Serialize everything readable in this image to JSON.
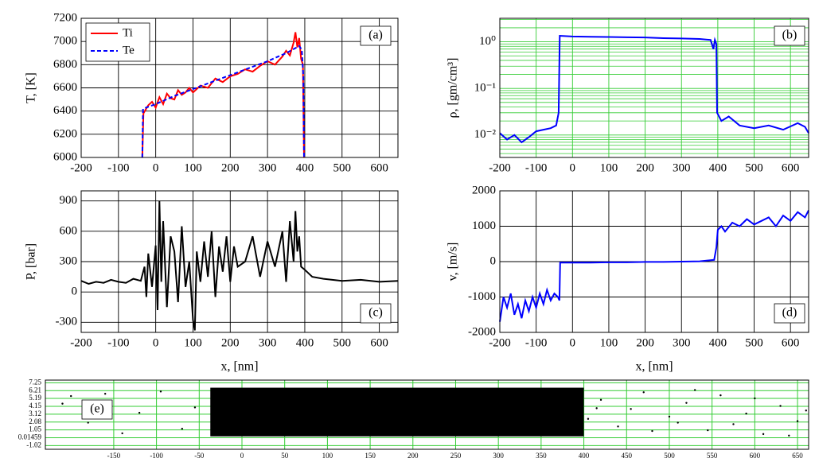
{
  "chart_data": [
    {
      "type": "line",
      "annotation": "(a)",
      "ylabel": "T, [K]",
      "xlim": [
        -200,
        650
      ],
      "xticks": [
        -200,
        -100,
        0,
        100,
        200,
        300,
        400,
        500,
        600
      ],
      "ylim": [
        6000,
        7200
      ],
      "yticks": [
        6000,
        6200,
        6400,
        6600,
        6800,
        7000,
        7200
      ],
      "grid": true,
      "grid_color": "#000000",
      "legend": "upper left",
      "series": [
        {
          "name": "Ti",
          "color": "#ff0000",
          "line_style": "solid",
          "x": [
            -36,
            -33,
            -20,
            -10,
            0,
            10,
            20,
            30,
            40,
            50,
            60,
            70,
            80,
            90,
            100,
            120,
            140,
            160,
            180,
            200,
            220,
            240,
            260,
            280,
            300,
            320,
            340,
            350,
            360,
            370,
            375,
            380,
            385,
            390,
            395,
            398
          ],
          "values": [
            6000,
            6380,
            6450,
            6480,
            6430,
            6520,
            6460,
            6550,
            6510,
            6500,
            6580,
            6540,
            6560,
            6600,
            6560,
            6620,
            6600,
            6680,
            6650,
            6700,
            6720,
            6760,
            6740,
            6790,
            6830,
            6800,
            6870,
            6920,
            6880,
            6990,
            7080,
            6950,
            7030,
            6850,
            6800,
            6000
          ]
        },
        {
          "name": "Te",
          "color": "#0000ff",
          "line_style": "dashed",
          "x": [
            -36,
            -34,
            0,
            50,
            100,
            150,
            200,
            250,
            300,
            350,
            385,
            392,
            396,
            398
          ],
          "values": [
            6000,
            6420,
            6460,
            6530,
            6590,
            6650,
            6710,
            6770,
            6830,
            6900,
            6960,
            6930,
            6700,
            6000
          ]
        }
      ]
    },
    {
      "type": "line",
      "annotation": "(b)",
      "ylabel": "ρ, [gm/cm³]",
      "log_scale": true,
      "xlim": [
        -200,
        650
      ],
      "xticks": [
        -200,
        -100,
        0,
        100,
        200,
        300,
        400,
        500,
        600
      ],
      "ylim": [
        0.0033,
        3.2
      ],
      "yticks": [
        {
          "value": 0.01,
          "label": "10⁻²"
        },
        {
          "value": 0.1,
          "label": "10⁻¹"
        },
        {
          "value": 1,
          "label": "10⁰"
        }
      ],
      "grid": true,
      "minor_grid": true,
      "grid_color": "#33cc33",
      "series": [
        {
          "color": "#0000ff",
          "line_style": "solid",
          "x": [
            -200,
            -180,
            -160,
            -140,
            -120,
            -100,
            -80,
            -60,
            -45,
            -38,
            -35,
            0,
            50,
            100,
            150,
            200,
            250,
            300,
            350,
            380,
            388,
            392,
            396,
            398,
            410,
            430,
            460,
            500,
            540,
            580,
            620,
            640,
            650
          ],
          "values": [
            0.011,
            0.008,
            0.01,
            0.007,
            0.009,
            0.012,
            0.013,
            0.014,
            0.016,
            0.03,
            1.35,
            1.3,
            1.28,
            1.27,
            1.25,
            1.24,
            1.2,
            1.18,
            1.15,
            1.1,
            0.7,
            1.1,
            0.9,
            0.03,
            0.02,
            0.025,
            0.016,
            0.014,
            0.016,
            0.013,
            0.018,
            0.015,
            0.011
          ]
        }
      ]
    },
    {
      "type": "line",
      "annotation": "(c)",
      "ylabel": "P, [bar]",
      "xlabel": "x, [nm]",
      "xlim": [
        -200,
        650
      ],
      "xticks": [
        -200,
        -100,
        0,
        100,
        200,
        300,
        400,
        500,
        600
      ],
      "ylim": [
        -400,
        1000
      ],
      "yticks": [
        -300,
        0,
        300,
        600,
        900
      ],
      "grid": true,
      "grid_color": "#000000",
      "series": [
        {
          "color": "#000000",
          "line_style": "solid",
          "x": [
            -200,
            -180,
            -160,
            -140,
            -120,
            -100,
            -80,
            -60,
            -40,
            -30,
            -25,
            -20,
            -10,
            0,
            5,
            10,
            15,
            20,
            30,
            40,
            50,
            60,
            70,
            80,
            90,
            100,
            105,
            110,
            120,
            130,
            140,
            150,
            160,
            170,
            180,
            190,
            200,
            210,
            220,
            240,
            260,
            280,
            300,
            320,
            340,
            350,
            360,
            370,
            375,
            380,
            385,
            390,
            400,
            420,
            450,
            500,
            550,
            600,
            650
          ],
          "values": [
            110,
            80,
            100,
            90,
            120,
            100,
            90,
            130,
            110,
            250,
            -50,
            380,
            50,
            460,
            -180,
            900,
            100,
            700,
            -150,
            550,
            400,
            -100,
            650,
            50,
            300,
            -280,
            -380,
            400,
            100,
            500,
            150,
            600,
            -50,
            450,
            200,
            550,
            100,
            450,
            250,
            300,
            550,
            150,
            500,
            250,
            600,
            100,
            700,
            300,
            800,
            400,
            550,
            250,
            220,
            150,
            130,
            110,
            120,
            100,
            110
          ]
        }
      ]
    },
    {
      "type": "line",
      "annotation": "(d)",
      "ylabel": "v, [m/s]",
      "xlabel": "x, [nm]",
      "xlim": [
        -200,
        650
      ],
      "xticks": [
        -200,
        -100,
        0,
        100,
        200,
        300,
        400,
        500,
        600
      ],
      "ylim": [
        -2000,
        2000
      ],
      "yticks": [
        -2000,
        -1000,
        0,
        1000,
        2000
      ],
      "grid": true,
      "grid_color": "#000000",
      "series": [
        {
          "color": "#0000ff",
          "line_style": "solid",
          "x": [
            -200,
            -190,
            -180,
            -170,
            -160,
            -150,
            -140,
            -130,
            -120,
            -110,
            -100,
            -90,
            -80,
            -70,
            -60,
            -50,
            -40,
            -36,
            -34,
            0,
            50,
            100,
            150,
            200,
            250,
            300,
            350,
            390,
            396,
            400,
            410,
            420,
            440,
            460,
            480,
            500,
            520,
            540,
            560,
            580,
            600,
            620,
            640,
            650
          ],
          "values": [
            -1700,
            -1000,
            -1300,
            -900,
            -1500,
            -1200,
            -1600,
            -1100,
            -1400,
            -1000,
            -1300,
            -900,
            -1200,
            -800,
            -1100,
            -900,
            -1000,
            -1100,
            -30,
            -30,
            -30,
            -20,
            -20,
            -10,
            -10,
            0,
            10,
            50,
            400,
            900,
            1000,
            850,
            1100,
            1000,
            1200,
            1050,
            1150,
            1250,
            1000,
            1300,
            1150,
            1400,
            1250,
            1450
          ]
        }
      ]
    },
    {
      "type": "scatter",
      "annotation": "(e)",
      "xlim": [
        -230,
        663
      ],
      "xticks": [
        -150,
        -100,
        -50,
        0,
        50,
        100,
        150,
        200,
        250,
        300,
        350,
        400,
        450,
        500,
        550,
        600,
        650
      ],
      "ylim": [
        -1.5,
        7.6
      ],
      "yticks": [
        -1.02,
        0.01459,
        1.05,
        2.08,
        3.12,
        4.15,
        5.19,
        6.21,
        7.25
      ],
      "grid": true,
      "grid_color": "#33cc33",
      "dense_region": {
        "x": [
          -37,
          400
        ],
        "y": [
          0.2,
          6.6
        ]
      },
      "x": [
        -210,
        -180,
        -160,
        -120,
        -95,
        -70,
        -55,
        -140,
        -200,
        405,
        420,
        440,
        455,
        470,
        500,
        520,
        545,
        560,
        590,
        610,
        630,
        650,
        660,
        480,
        530,
        575,
        415,
        600,
        640,
        510
      ],
      "values": [
        4.5,
        2.0,
        5.8,
        3.3,
        6.1,
        1.2,
        4.0,
        0.6,
        5.5,
        2.5,
        5.0,
        1.5,
        3.8,
        6.0,
        2.8,
        4.6,
        1.0,
        5.6,
        3.2,
        0.5,
        4.2,
        2.2,
        3.6,
        0.9,
        6.3,
        1.8,
        3.9,
        5.2,
        0.3,
        2.0
      ]
    }
  ]
}
